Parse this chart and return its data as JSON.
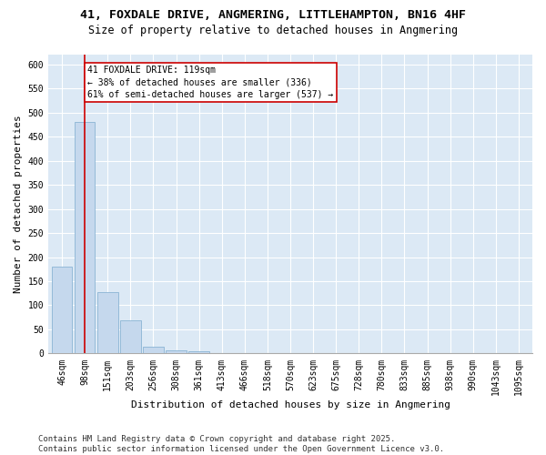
{
  "title1": "41, FOXDALE DRIVE, ANGMERING, LITTLEHAMPTON, BN16 4HF",
  "title2": "Size of property relative to detached houses in Angmering",
  "xlabel": "Distribution of detached houses by size in Angmering",
  "ylabel": "Number of detached properties",
  "footer": "Contains HM Land Registry data © Crown copyright and database right 2025.\nContains public sector information licensed under the Open Government Licence v3.0.",
  "bin_labels": [
    "46sqm",
    "98sqm",
    "151sqm",
    "203sqm",
    "256sqm",
    "308sqm",
    "361sqm",
    "413sqm",
    "466sqm",
    "518sqm",
    "570sqm",
    "623sqm",
    "675sqm",
    "728sqm",
    "780sqm",
    "833sqm",
    "885sqm",
    "938sqm",
    "990sqm",
    "1043sqm",
    "1095sqm"
  ],
  "bar_values": [
    180,
    480,
    128,
    68,
    15,
    6,
    5,
    0,
    0,
    0,
    0,
    0,
    0,
    0,
    0,
    0,
    0,
    0,
    0,
    0,
    0
  ],
  "bar_color": "#c5d8ed",
  "bar_edgecolor": "#8ab4d4",
  "ylim": [
    0,
    620
  ],
  "yticks": [
    0,
    50,
    100,
    150,
    200,
    250,
    300,
    350,
    400,
    450,
    500,
    550,
    600
  ],
  "vline_color": "#cc0000",
  "annotation_text": "41 FOXDALE DRIVE: 119sqm\n← 38% of detached houses are smaller (336)\n61% of semi-detached houses are larger (537) →",
  "annotation_box_color": "#cc0000",
  "background_color": "#dce9f5",
  "grid_color": "#ffffff",
  "title_fontsize": 9.5,
  "subtitle_fontsize": 8.5,
  "label_fontsize": 8,
  "tick_fontsize": 7,
  "footer_fontsize": 6.5
}
